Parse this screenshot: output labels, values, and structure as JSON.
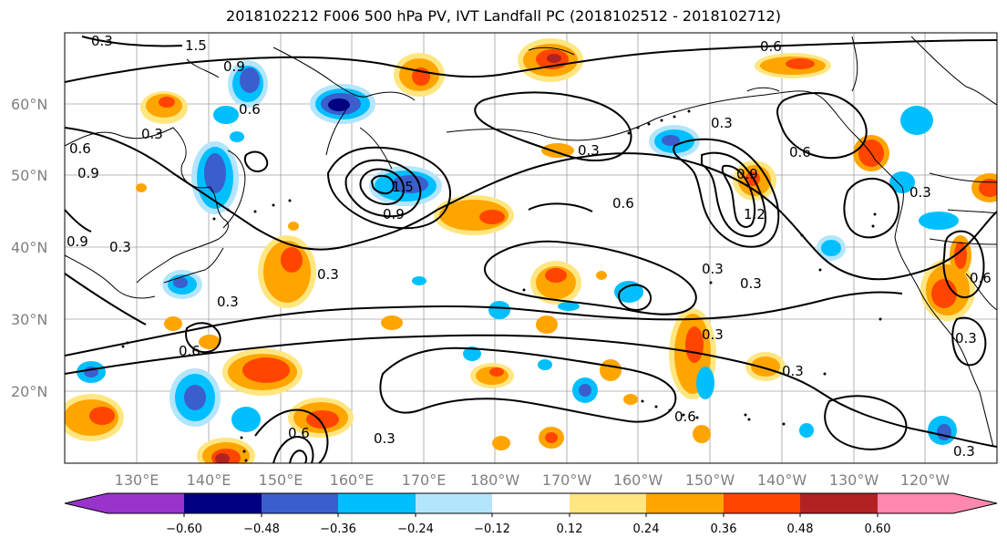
{
  "title": "2018102212 F006 500 hPa PV, IVT Landfall PC (2018102512 - 2018102712)",
  "map": {
    "lat_labels": [
      "60°N",
      "50°N",
      "40°N",
      "30°N",
      "20°N"
    ],
    "lon_labels": [
      "130°E",
      "140°E",
      "150°E",
      "160°E",
      "170°E",
      "180°W",
      "170°W",
      "160°W",
      "150°W",
      "140°W",
      "130°W",
      "120°W"
    ],
    "contour_labels": [
      "1.5",
      "0.9",
      "0.6",
      "0.3",
      "0.6",
      "0.9",
      "0.3",
      "0.9",
      "0.3",
      "0.3",
      "0.6",
      "0.3",
      "0.6",
      "0.3",
      "1.2",
      "0.9",
      "0.6",
      "0.3",
      "0.3",
      "0.3",
      "0.6",
      "0.3",
      "0.3",
      "0.6",
      "0.3",
      "0.6",
      "0.3",
      "1.5",
      "0.9",
      "0.3",
      "0.3",
      "0.6"
    ]
  },
  "colorbar": {
    "ticks": [
      "−0.60",
      "−0.48",
      "−0.36",
      "−0.24",
      "−0.12",
      "0.12",
      "0.24",
      "0.36",
      "0.48",
      "0.60"
    ],
    "colors": [
      "#9933cc",
      "#000080",
      "#3a5fcd",
      "#00bfff",
      "#b3e5fc",
      "#ffffff",
      "#ffe680",
      "#ffa500",
      "#ff4500",
      "#b22222",
      "#ff88b0"
    ]
  },
  "palette": {
    "pos_light": "#ffe680",
    "pos_mid": "#ffa500",
    "pos_strong": "#ff4500",
    "pos_max": "#b22222",
    "neg_light": "#b3e5fc",
    "neg_mid": "#00bfff",
    "neg_strong": "#3a5fcd",
    "neg_max": "#000080"
  }
}
